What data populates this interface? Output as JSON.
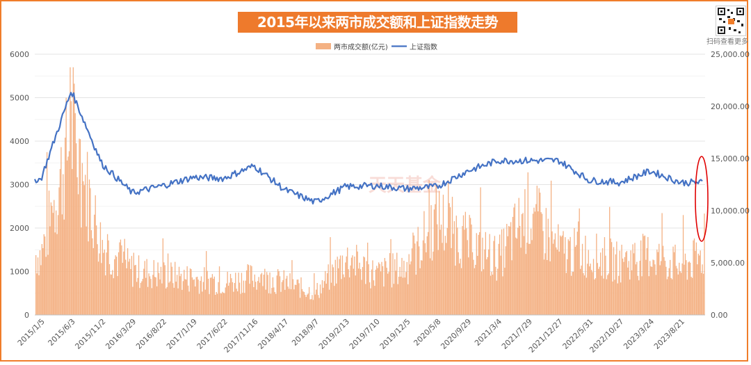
{
  "title": "2015年以来两市成交额和上证指数走势",
  "qr_caption": "扫码查看更多",
  "watermark": "天天基金",
  "colors": {
    "bars": "#f4b183",
    "line": "#4472c4",
    "border": "#f07d2a",
    "highlight": "#e00000",
    "title_bg": "#ee7a2c"
  },
  "chart_data": {
    "type": "bar+line",
    "legend_position": "top-center",
    "grid": true,
    "series": [
      {
        "name": "两市成交额(亿元)",
        "type": "bar",
        "axis": "left"
      },
      {
        "name": "上证指数",
        "type": "line",
        "axis": "right"
      }
    ],
    "y_left": {
      "ylim": [
        0,
        6000
      ],
      "ticks": [
        "0",
        "1000",
        "2000",
        "3000",
        "4000",
        "5000",
        "6000"
      ]
    },
    "y_right": {
      "ylim": [
        0,
        25000
      ],
      "ticks": [
        "0.00",
        "5,000.00",
        "10,000.00",
        "15,000.00",
        "20,000.00",
        "25,000.00"
      ]
    },
    "x_tick_labels": [
      "2015/1/5",
      "2015/6/3",
      "2015/11/2",
      "2016/3/29",
      "2016/8/22",
      "2017/1/19",
      "2017/6/22",
      "2017/11/16",
      "2018/4/17",
      "2018/9/7",
      "2019/2/13",
      "2019/7/10",
      "2019/12/5",
      "2020/5/8",
      "2020/9/29",
      "2021/3/4",
      "2021/7/29",
      "2021/12/27",
      "2022/5/31",
      "2022/10/27",
      "2023/3/24",
      "2023/8/21"
    ],
    "turnover_at_ticks": [
      1500,
      4500,
      1700,
      1100,
      1000,
      900,
      800,
      950,
      800,
      550,
      1400,
      1000,
      1200,
      2400,
      1800,
      1400,
      2600,
      1600,
      1500,
      1300,
      1500,
      1200
    ],
    "turnover_peak": 5700,
    "index_at_ticks": [
      13000,
      21500,
      14500,
      11700,
      12400,
      13200,
      13100,
      14300,
      12000,
      10800,
      12300,
      12400,
      12100,
      12300,
      13800,
      14800,
      14800,
      14800,
      12900,
      12700,
      13800,
      12700
    ],
    "index_end": 12700
  }
}
